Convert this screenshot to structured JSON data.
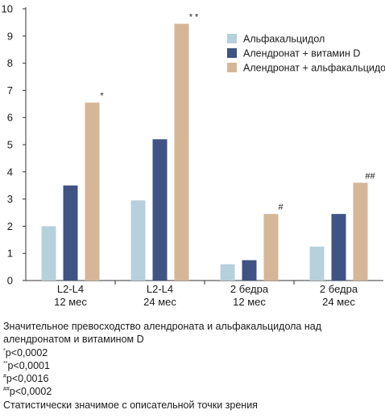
{
  "chart_data": {
    "type": "bar",
    "categories": [
      [
        "L2-L4",
        "12 мес"
      ],
      [
        "L2-L4",
        "24 мес"
      ],
      [
        "2 бедра",
        "12 мес"
      ],
      [
        "2 бедра",
        "24 мес"
      ]
    ],
    "series": [
      {
        "name": "Альфакальцидол",
        "color": "#b7d1dc",
        "values": [
          2.0,
          2.95,
          0.6,
          1.25
        ]
      },
      {
        "name": "Алендронат + витамин D",
        "color": "#3f5484",
        "values": [
          3.5,
          5.2,
          0.75,
          2.45
        ]
      },
      {
        "name": "Алендронат + альфакальцидол",
        "color": "#d5b797",
        "values": [
          6.55,
          9.45,
          2.45,
          3.6
        ]
      }
    ],
    "significance": [
      "*",
      "* *",
      "#",
      "##"
    ],
    "ylim": [
      0,
      10
    ],
    "yticks": [
      "0",
      "1",
      "2",
      "3",
      "4",
      "5",
      "6",
      "7",
      "8",
      "9",
      "10"
    ],
    "legend_position": "top-right",
    "grid": false
  },
  "notes": {
    "line1": "Значительное превосходство алендроната и альфакальцидола над алендронатом и витамином D",
    "p1_mark": "*",
    "p1": "p<0,0002",
    "p2_mark": "**",
    "p2": "p<0,0001",
    "p3_mark": "#",
    "p3": "p<0,0016",
    "p4_mark": "##",
    "p4": "p<0,0002",
    "last": "Статистически значимое с описательной точки зрения"
  }
}
